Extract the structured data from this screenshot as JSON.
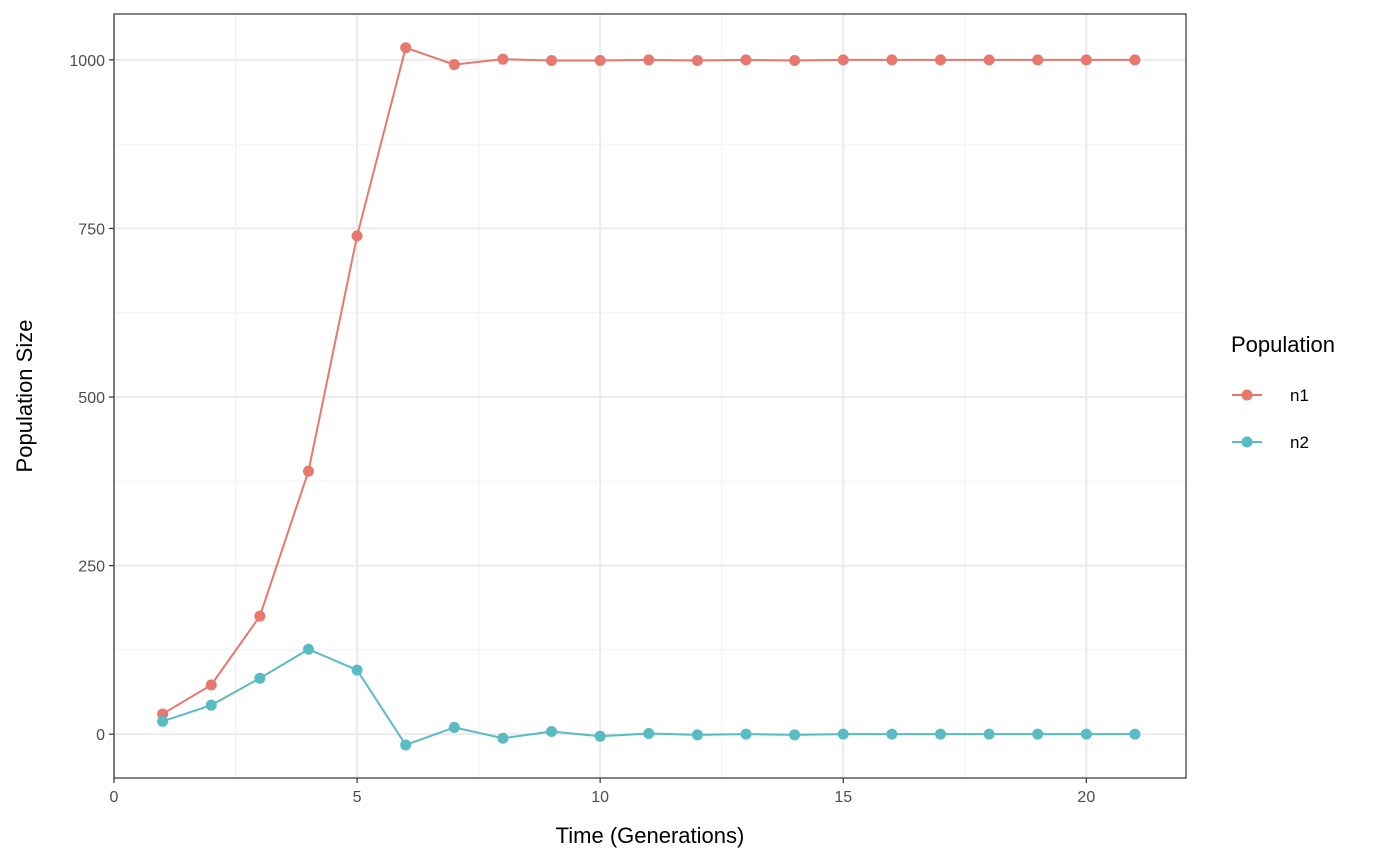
{
  "chart_data": {
    "type": "line",
    "title": "",
    "xlabel": "Time (Generations)",
    "ylabel": "Population Size",
    "xlim": [
      0,
      22.05
    ],
    "ylim": [
      -65,
      1068
    ],
    "xticks": [
      0,
      5,
      10,
      15,
      20
    ],
    "yticks": [
      0,
      250,
      500,
      750,
      1000
    ],
    "grid": true,
    "legend": {
      "title": "Population",
      "placement": "right"
    },
    "x": [
      1,
      2,
      3,
      4,
      5,
      6,
      7,
      8,
      9,
      10,
      11,
      12,
      13,
      14,
      15,
      16,
      17,
      18,
      19,
      20,
      21
    ],
    "series": [
      {
        "name": "n1",
        "color": "#F8766D",
        "values": [
          30,
          73,
          175,
          390,
          739,
          1018,
          993,
          1001,
          999,
          999,
          1000,
          999,
          1000,
          999,
          1000,
          1000,
          1000,
          1000,
          1000,
          1000,
          1000
        ]
      },
      {
        "name": "n2",
        "color": "#00BFC4",
        "values": [
          19,
          43,
          83,
          126,
          95,
          -16,
          10,
          -6,
          4,
          -3,
          1,
          -1,
          0,
          -1,
          0,
          0,
          0,
          0,
          0,
          0,
          0
        ]
      }
    ]
  }
}
